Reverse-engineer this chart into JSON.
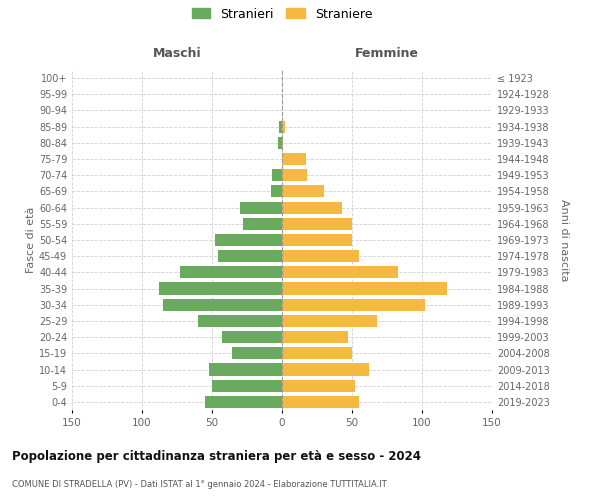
{
  "age_groups": [
    "0-4",
    "5-9",
    "10-14",
    "15-19",
    "20-24",
    "25-29",
    "30-34",
    "35-39",
    "40-44",
    "45-49",
    "50-54",
    "55-59",
    "60-64",
    "65-69",
    "70-74",
    "75-79",
    "80-84",
    "85-89",
    "90-94",
    "95-99",
    "100+"
  ],
  "birth_years": [
    "2019-2023",
    "2014-2018",
    "2009-2013",
    "2004-2008",
    "1999-2003",
    "1994-1998",
    "1989-1993",
    "1984-1988",
    "1979-1983",
    "1974-1978",
    "1969-1973",
    "1964-1968",
    "1959-1963",
    "1954-1958",
    "1949-1953",
    "1944-1948",
    "1939-1943",
    "1934-1938",
    "1929-1933",
    "1924-1928",
    "≤ 1923"
  ],
  "maschi": [
    55,
    50,
    52,
    36,
    43,
    60,
    85,
    88,
    73,
    46,
    48,
    28,
    30,
    8,
    7,
    0,
    3,
    2,
    0,
    0,
    0
  ],
  "femmine": [
    55,
    52,
    62,
    50,
    47,
    68,
    102,
    118,
    83,
    55,
    50,
    50,
    43,
    30,
    18,
    17,
    1,
    2,
    0,
    0,
    0
  ],
  "color_maschi": "#6aaa5e",
  "color_femmine": "#f5b942",
  "title": "Popolazione per cittadinanza straniera per età e sesso - 2024",
  "subtitle": "COMUNE DI STRADELLA (PV) - Dati ISTAT al 1° gennaio 2024 - Elaborazione TUTTITALIA.IT",
  "xlabel_left": "Maschi",
  "xlabel_right": "Femmine",
  "ylabel_left": "Fasce di età",
  "ylabel_right": "Anni di nascita",
  "legend_maschi": "Stranieri",
  "legend_femmine": "Straniere",
  "xlim": 150,
  "background_color": "#ffffff",
  "grid_color": "#cccccc"
}
